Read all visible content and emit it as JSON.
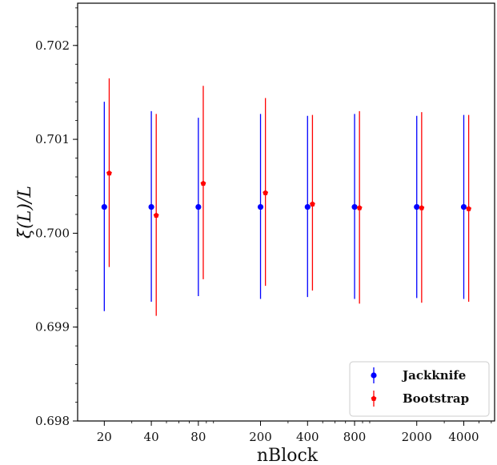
{
  "chart_data": {
    "type": "scatter",
    "title": "",
    "xlabel": "nBlock",
    "ylabel": "ξ(L)/L",
    "x_categories": [
      "20",
      "40",
      "80",
      "200",
      "400",
      "800",
      "2000",
      "4000"
    ],
    "x_scale": "log",
    "xlim": [
      13.5,
      6300
    ],
    "ylim": [
      0.698,
      0.70245
    ],
    "y_ticks": [
      0.698,
      0.699,
      0.7,
      0.701,
      0.702
    ],
    "y_tick_labels": [
      "0.698",
      "0.699",
      "0.700",
      "0.701",
      "0.702"
    ],
    "grid": false,
    "legend_position": "lower-right",
    "series": [
      {
        "name": "Jackknife",
        "color": "#0000ff",
        "x": [
          20,
          40,
          80,
          200,
          400,
          800,
          2000,
          4000
        ],
        "y": [
          0.70028,
          0.70028,
          0.70028,
          0.70028,
          0.70028,
          0.70028,
          0.70028,
          0.70028
        ],
        "yerr_low": [
          0.69917,
          0.69927,
          0.69933,
          0.6993,
          0.69932,
          0.6993,
          0.69931,
          0.6993
        ],
        "yerr_high": [
          0.7014,
          0.7013,
          0.70123,
          0.70127,
          0.70125,
          0.70127,
          0.70125,
          0.70126
        ]
      },
      {
        "name": "Bootstrap",
        "color": "#ff0000",
        "x": [
          21.5,
          43,
          86,
          215,
          430,
          860,
          2150,
          4300
        ],
        "y": [
          0.70064,
          0.70019,
          0.70053,
          0.70043,
          0.70031,
          0.70027,
          0.70027,
          0.70026
        ],
        "yerr_low": [
          0.69964,
          0.69912,
          0.69951,
          0.69944,
          0.69939,
          0.69925,
          0.69926,
          0.69927
        ],
        "yerr_high": [
          0.70165,
          0.70127,
          0.70157,
          0.70144,
          0.70126,
          0.7013,
          0.70129,
          0.70126
        ]
      }
    ]
  }
}
